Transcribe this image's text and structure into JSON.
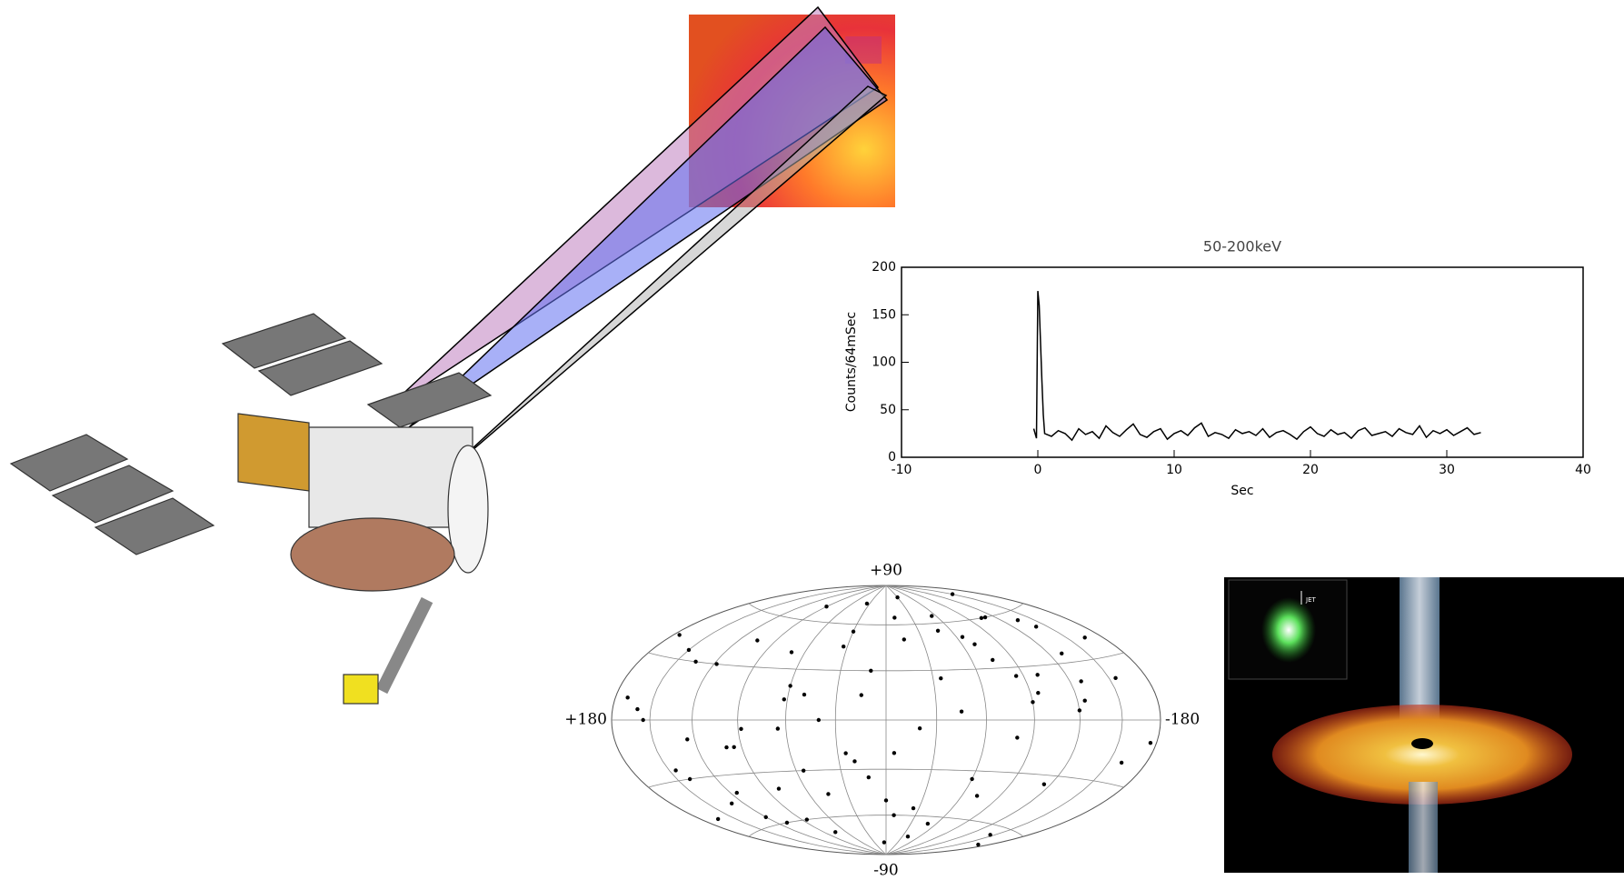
{
  "light_curve": {
    "type": "line",
    "title": "50-200keV",
    "x_label": "Sec",
    "y_label": "Counts/64mSec",
    "xlim": [
      -10,
      40
    ],
    "xticks": [
      -10,
      0,
      10,
      20,
      30,
      40
    ],
    "ylim": [
      0,
      200
    ],
    "yticks": [
      0,
      50,
      100,
      150,
      200
    ],
    "color": "#000000",
    "x": [
      -0.3,
      -0.1,
      0,
      0.1,
      0.2,
      0.3,
      0.4,
      0.5,
      1,
      1.5,
      2,
      2.5,
      3,
      3.5,
      4,
      4.5,
      5,
      5.5,
      6,
      6.5,
      7,
      7.5,
      8,
      8.5,
      9,
      9.5,
      10,
      10.5,
      11,
      11.5,
      12,
      12.5,
      13,
      13.5,
      14,
      14.5,
      15,
      15.5,
      16,
      16.5,
      17,
      17.5,
      18,
      18.5,
      19,
      19.5,
      20,
      20.5,
      21,
      21.5,
      22,
      22.5,
      23,
      23.5,
      24,
      24.5,
      25,
      25.5,
      26,
      26.5,
      27,
      27.5,
      28,
      28.5,
      29,
      29.5,
      30,
      30.5,
      31,
      31.5,
      32,
      32.5
    ],
    "values": [
      30,
      20,
      175,
      160,
      120,
      80,
      45,
      25,
      22,
      28,
      25,
      18,
      30,
      24,
      27,
      20,
      33,
      26,
      22,
      29,
      35,
      24,
      21,
      27,
      30,
      19,
      25,
      28,
      23,
      31,
      36,
      22,
      26,
      24,
      20,
      29,
      25,
      27,
      23,
      30,
      21,
      26,
      28,
      24,
      19,
      27,
      32,
      25,
      22,
      29,
      24,
      26,
      20,
      28,
      31,
      23,
      25,
      27,
      22,
      30,
      26,
      24,
      33,
      21,
      28,
      25,
      29,
      23,
      27,
      31,
      24,
      26
    ]
  },
  "sky_map": {
    "type": "scatter",
    "labels": {
      "top": "+90",
      "bottom": "-90",
      "left": "+180",
      "right": "-180"
    },
    "lon": [
      170,
      -160,
      150,
      -140,
      130,
      -120,
      110,
      -100,
      90,
      -80,
      70,
      -60,
      50,
      -40,
      30,
      -20,
      10,
      0,
      -10,
      20,
      -30,
      40,
      -50,
      60,
      -70,
      80,
      -90,
      100,
      -110,
      120,
      -130,
      140,
      -150,
      160,
      -170,
      5,
      -15,
      25,
      -35,
      45,
      -55,
      65,
      -75,
      85,
      -95,
      105,
      -115,
      125,
      -135,
      145,
      -155,
      165,
      -165,
      155,
      -145,
      135,
      -125,
      115,
      -105,
      95,
      -85,
      75,
      -65,
      55,
      -45,
      35,
      -25,
      15,
      -5,
      175,
      -175,
      12,
      -48,
      88,
      -128,
      33,
      -72,
      118,
      -8,
      62
    ],
    "lat": [
      10,
      -20,
      35,
      50,
      -45,
      5,
      -60,
      25,
      70,
      -10,
      40,
      -35,
      15,
      -75,
      55,
      -5,
      30,
      -50,
      65,
      -25,
      80,
      0,
      -65,
      20,
      45,
      -40,
      10,
      -15,
      60,
      -55,
      35,
      -30,
      75,
      5,
      -70,
      -80,
      50,
      -20,
      25,
      -45,
      65,
      -5,
      35,
      -60,
      15,
      45,
      -35,
      -10,
      55,
      -25,
      20,
      -50,
      40,
      0,
      -65,
      30,
      10,
      -40,
      60,
      -15,
      25,
      -70,
      50,
      -30,
      5,
      75,
      -55,
      15,
      -20,
      40,
      -10,
      -35,
      55,
      -5,
      20,
      45,
      -45,
      30,
      -60,
      12
    ]
  },
  "jet_image": {
    "inset_label": "JET"
  }
}
